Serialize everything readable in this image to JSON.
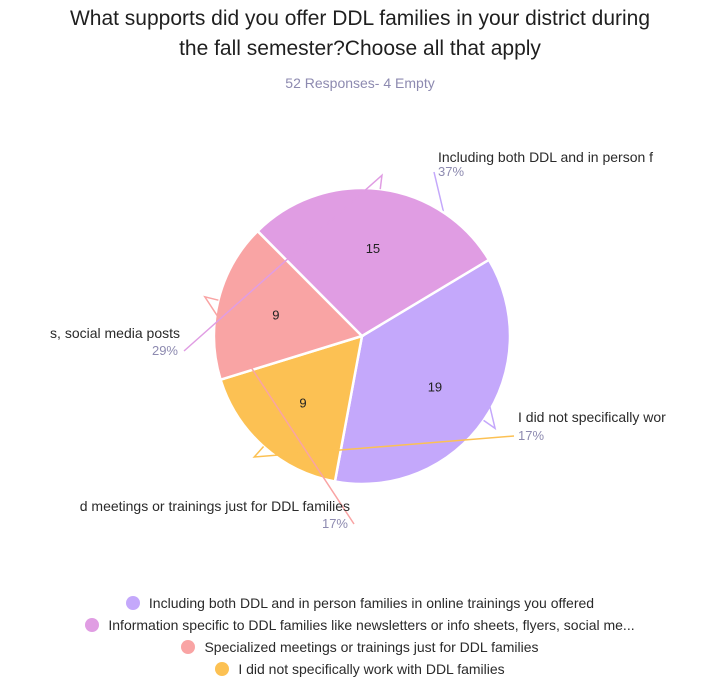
{
  "title_lines": [
    "What supports did you offer DDL families in your district during",
    "the fall semester?Choose all that apply"
  ],
  "subtitle": "52 Responses- 4 Empty",
  "chart_data": {
    "type": "pie",
    "title": "What supports did you offer DDL families in your district during the fall semester?Choose all that apply",
    "subtitle": "52 Responses- 4 Empty",
    "slices": [
      {
        "label": "Including both DDL and in person families in  online trainings you offered",
        "callout": "Including both DDL and in person f",
        "value": 19,
        "percent": "37%",
        "color": "#c4a8fb"
      },
      {
        "label": "I did not specifically work with DDL families",
        "callout": "I did not specifically wor",
        "value": 9,
        "percent": "17%",
        "color": "#fcc153"
      },
      {
        "label": "Specialized meetings or trainings just for DDL families",
        "callout": "d meetings or trainings just for DDL families",
        "value": 9,
        "percent": "17%",
        "color": "#f9a4a4"
      },
      {
        "label": "Information specific to DDL families like newsletters or info sheets, flyers, social me...",
        "callout": "s, social media posts",
        "value": 15,
        "percent": "29%",
        "color": "#e09de3"
      }
    ],
    "legend_position": "bottom",
    "legend": [
      {
        "label": "Including both DDL and in person families in  online trainings you offered",
        "color": "#c4a8fb"
      },
      {
        "label": "Information specific to DDL families like newsletters or info sheets, flyers, social me...",
        "color": "#e09de3"
      },
      {
        "label": "Specialized meetings or trainings just for DDL families",
        "color": "#f9a4a4"
      },
      {
        "label": "I did not specifically work with DDL families",
        "color": "#fcc153"
      }
    ]
  }
}
